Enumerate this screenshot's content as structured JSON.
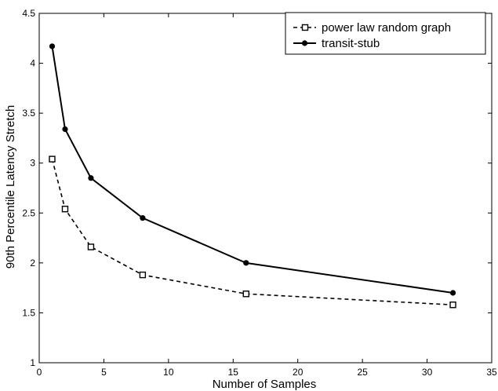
{
  "chart_data": {
    "type": "line",
    "title": "",
    "xlabel": "Number of Samples",
    "ylabel": "90th Percentile Latency Stretch",
    "xlim": [
      0,
      35
    ],
    "ylim": [
      1,
      4.5
    ],
    "xticks": [
      0,
      5,
      10,
      15,
      20,
      25,
      30,
      35
    ],
    "xtick_labels": [
      "0",
      "5",
      "10",
      "15",
      "20",
      "25",
      "30",
      "35"
    ],
    "yticks": [
      1,
      1.5,
      2,
      2.5,
      3,
      3.5,
      4,
      4.5
    ],
    "ytick_labels": [
      "1",
      "1.5",
      "2",
      "2.5",
      "3",
      "3.5",
      "4",
      "4.5"
    ],
    "grid": false,
    "legend_position": "top-right",
    "series": [
      {
        "name": "power law random graph",
        "x": [
          1,
          2,
          4,
          8,
          16,
          32
        ],
        "y": [
          3.04,
          2.54,
          2.16,
          1.88,
          1.69,
          1.58
        ],
        "line_style": "dashed",
        "marker": "open-square",
        "color": "#000000"
      },
      {
        "name": "transit-stub",
        "x": [
          1,
          2,
          4,
          8,
          16,
          32
        ],
        "y": [
          4.17,
          3.34,
          2.85,
          2.45,
          2.0,
          1.7
        ],
        "line_style": "solid",
        "marker": "filled-circle",
        "color": "#000000"
      }
    ]
  }
}
